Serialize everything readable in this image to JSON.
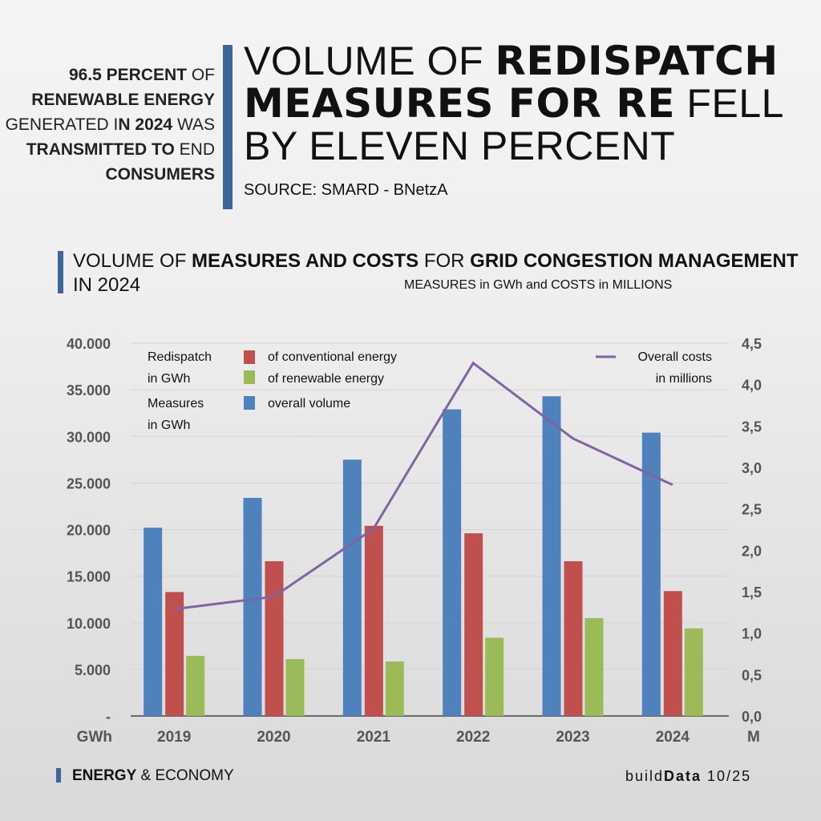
{
  "side_note": {
    "parts": [
      {
        "text": "96.5 PERCENT",
        "bold": true
      },
      {
        "text": " OF ",
        "bold": false
      },
      {
        "text": "RENEWABLE ENERGY",
        "bold": true
      },
      {
        "text": " GENERATED I",
        "bold": false
      },
      {
        "text": "N 2024",
        "bold": true
      },
      {
        "text": " WAS ",
        "bold": false
      },
      {
        "text": "TRANSMITTED TO",
        "bold": true
      },
      {
        "text": " END ",
        "bold": false
      },
      {
        "text": "CONSUMERS",
        "bold": true
      }
    ]
  },
  "headline": {
    "line1_plain": "VOLUME OF ",
    "line1_bold": "REDISPATCH",
    "line2_bold": "MEASURES FOR RE",
    "line2_plain": " FELL",
    "line3": "BY ELEVEN PERCENT"
  },
  "source": "SOURCE: SMARD - BNetzA",
  "subtitle": {
    "p1": "VOLUME OF ",
    "b1": "MEASURES AND COSTS",
    "p2": " FOR ",
    "b2": "GRID CONGESTION MANAGEMENT",
    "p3": " IN 2024"
  },
  "units_note": "MEASURES in GWh and COSTS in MILLIONS",
  "footer": {
    "bold": "ENERGY",
    "rest": " & ECONOMY",
    "brand_light": "build",
    "brand_bold": "Data",
    "issue": " 10/25"
  },
  "colors": {
    "conventional": "#c0504d",
    "renewable": "#9bbb59",
    "overall": "#4f81bd",
    "costs": "#8064a2",
    "accent": "#3d6597"
  },
  "chart_data": {
    "type": "bar+line",
    "categories": [
      "2019",
      "2020",
      "2021",
      "2022",
      "2023",
      "2024"
    ],
    "series": [
      {
        "name": "overall volume",
        "axis": "left",
        "values": [
          20200,
          23400,
          27500,
          32900,
          34300,
          30400
        ]
      },
      {
        "name": "of conventional energy",
        "axis": "left",
        "values": [
          13300,
          16600,
          20400,
          19600,
          16600,
          13400
        ]
      },
      {
        "name": "of renewable energy",
        "axis": "left",
        "values": [
          6450,
          6100,
          5850,
          8400,
          10500,
          9400
        ]
      },
      {
        "name": "Overall costs in millions",
        "axis": "right",
        "type": "line",
        "values": [
          1.29,
          1.44,
          2.26,
          4.26,
          3.35,
          2.79
        ]
      }
    ],
    "legend_groups": [
      {
        "label1": "Redispatch",
        "label2": "in GWh"
      },
      {
        "label1": "Measures",
        "label2": "in GWh"
      }
    ],
    "legend_line": {
      "label1": "Overall costs",
      "label2": "in millions"
    },
    "left_axis": {
      "ticks": [
        "-",
        "5.000",
        "10.000",
        "15.000",
        "20.000",
        "25.000",
        "30.000",
        "35.000",
        "40.000"
      ],
      "ylim": [
        0,
        40000
      ],
      "unit": "GWh"
    },
    "right_axis": {
      "ticks": [
        "0,0",
        "0,5",
        "1,0",
        "1,5",
        "2,0",
        "2,5",
        "3,0",
        "3,5",
        "4,0",
        "4,5"
      ],
      "ylim": [
        0,
        4.5
      ],
      "unit": "M"
    },
    "grid": true,
    "legend_placement": "top"
  }
}
